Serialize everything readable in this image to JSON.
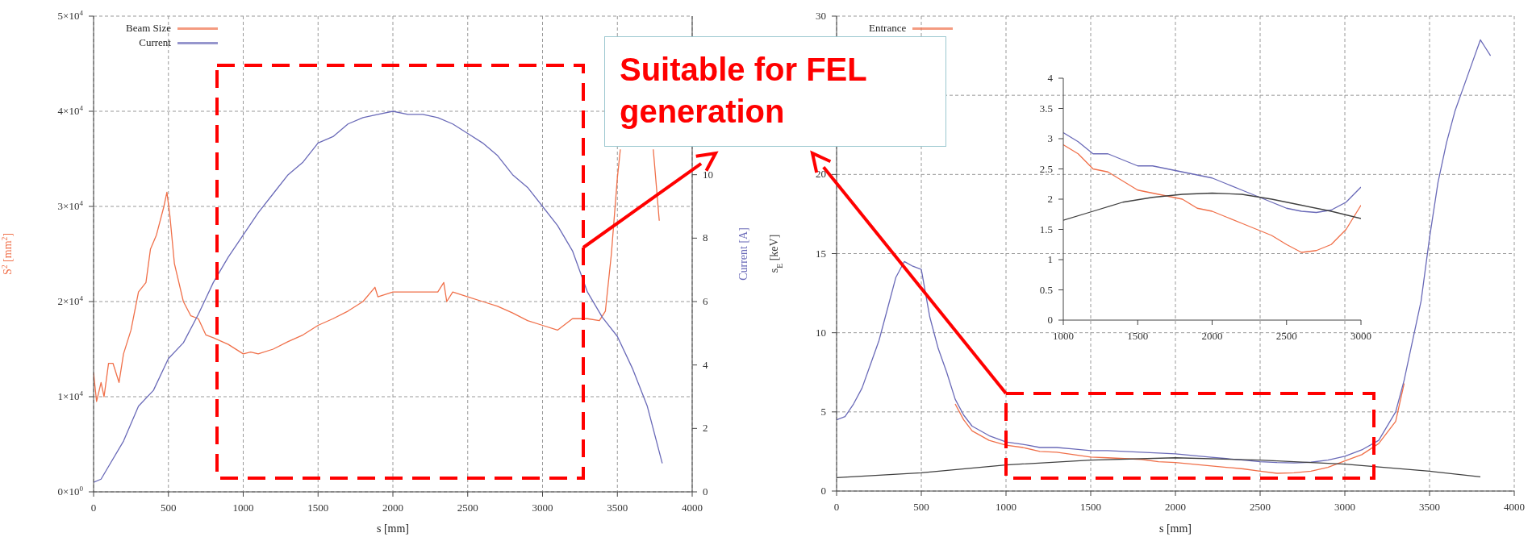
{
  "chart_data": [
    {
      "type": "line",
      "xlabel": "s [mm]",
      "ylabel": "S$^{2}$ [mm$^{2}$]",
      "y2label": "Current [A]",
      "xlim": [
        0,
        4000
      ],
      "xticks": [
        0,
        500,
        1000,
        1500,
        2000,
        2500,
        3000,
        3500,
        4000
      ],
      "ylim": [
        0,
        50000
      ],
      "yticks": [
        {
          "value": 0,
          "label": "0×10$^{0}$"
        },
        {
          "value": 10000,
          "label": "1×10$^{4}$"
        },
        {
          "value": 20000,
          "label": "2×10$^{4}$"
        },
        {
          "value": 30000,
          "label": "3×10$^{4}$"
        },
        {
          "value": 40000,
          "label": "4×10$^{4}$"
        },
        {
          "value": 50000,
          "label": "5×10$^{4}$"
        }
      ],
      "y2lim": [
        0,
        15
      ],
      "y2ticks": [
        0,
        2,
        4,
        6,
        8,
        10
      ],
      "grid": true,
      "legend": "top left",
      "annotations": [
        "Suitable for FEL generation"
      ],
      "series": [
        {
          "name": "Beam Size",
          "color": "#f0704a",
          "x": [
            0,
            20,
            50,
            70,
            100,
            130,
            170,
            200,
            250,
            300,
            350,
            380,
            420,
            470,
            490,
            510,
            540,
            600,
            650,
            700,
            750,
            800,
            900,
            1000,
            1050,
            1100,
            1200,
            1300,
            1400,
            1500,
            1600,
            1700,
            1800,
            1880,
            1900,
            2000,
            2100,
            2200,
            2300,
            2340,
            2360,
            2400,
            2500,
            2600,
            2700,
            2800,
            2900,
            3000,
            3100,
            3200,
            3300,
            3380,
            3420,
            3460,
            3500,
            3520,
            3600,
            3740,
            3780
          ],
          "values": [
            12500,
            9500,
            11500,
            10000,
            13500,
            13500,
            11500,
            14500,
            17000,
            21000,
            22000,
            25500,
            27000,
            30000,
            31500,
            29000,
            24000,
            20000,
            18500,
            18200,
            16500,
            16200,
            15500,
            14500,
            14700,
            14500,
            15000,
            15800,
            16500,
            17500,
            18200,
            19000,
            20000,
            21500,
            20500,
            21000,
            21000,
            21000,
            21000,
            22000,
            20000,
            21000,
            20500,
            20000,
            19500,
            18800,
            18000,
            17500,
            17000,
            18200,
            18200,
            18000,
            19000,
            25000,
            33000,
            36000,
            null,
            36000,
            28500
          ]
        },
        {
          "name": "Current",
          "color": "#6a6ab8",
          "axis": "y2",
          "x": [
            0,
            50,
            100,
            200,
            300,
            400,
            500,
            600,
            700,
            800,
            900,
            1000,
            1100,
            1200,
            1300,
            1400,
            1500,
            1600,
            1700,
            1800,
            1900,
            2000,
            2100,
            2200,
            2300,
            2400,
            2500,
            2600,
            2700,
            2800,
            2900,
            3000,
            3100,
            3200,
            3300,
            3400,
            3500,
            3600,
            3700,
            3800
          ],
          "values": [
            0.3,
            0.4,
            0.8,
            1.6,
            2.7,
            3.2,
            4.2,
            4.7,
            5.6,
            6.6,
            7.4,
            8.1,
            8.8,
            9.4,
            10.0,
            10.4,
            11.0,
            11.2,
            11.6,
            11.8,
            11.9,
            12.0,
            11.9,
            11.9,
            11.8,
            11.6,
            11.3,
            11.0,
            10.6,
            10.0,
            9.6,
            9.0,
            8.4,
            7.6,
            6.3,
            5.5,
            4.9,
            3.9,
            2.7,
            0.9
          ]
        }
      ]
    },
    {
      "type": "line",
      "xlabel": "s [mm]",
      "ylabel": "s$_{E}$ [keV]",
      "xlim": [
        0,
        4000
      ],
      "xticks": [
        0,
        500,
        1000,
        1500,
        2000,
        2500,
        3000,
        3500,
        4000
      ],
      "ylim": [
        0,
        30
      ],
      "yticks": [
        0,
        5,
        10,
        15,
        20,
        {
          "value": 25,
          "label": null
        },
        30
      ],
      "grid": true,
      "legend": "top left",
      "series": [
        {
          "name": "Entrance",
          "color": "#f0704a",
          "x": [
            700,
            750,
            800,
            900,
            1000,
            1100,
            1200,
            1300,
            1400,
            1500,
            1600,
            1700,
            1800,
            1900,
            2000,
            2100,
            2200,
            2300,
            2400,
            2500,
            2600,
            2700,
            2800,
            2900,
            3000,
            3100,
            3200,
            3300,
            3350
          ],
          "values": [
            5.5,
            4.5,
            3.8,
            3.2,
            2.9,
            2.75,
            2.5,
            2.45,
            2.3,
            2.15,
            2.1,
            2.05,
            2.0,
            1.85,
            1.8,
            1.7,
            1.6,
            1.5,
            1.4,
            1.25,
            1.12,
            1.15,
            1.25,
            1.5,
            1.9,
            2.3,
            3.0,
            4.4,
            6.8
          ]
        },
        {
          "color": "#6a6ab8",
          "x": [
            0,
            50,
            100,
            150,
            200,
            250,
            300,
            350,
            400,
            450,
            500,
            550,
            600,
            650,
            700,
            750,
            800,
            900,
            1000,
            1100,
            1200,
            1300,
            1400,
            1500,
            1600,
            1700,
            1800,
            1900,
            2000,
            2100,
            2200,
            2300,
            2400,
            2500,
            2600,
            2700,
            2800,
            2900,
            3000,
            3100,
            3200,
            3300,
            3350,
            3400,
            3450,
            3500,
            3550,
            3600,
            3650,
            3700,
            3750,
            3800,
            3830,
            3860
          ],
          "values": [
            4.5,
            4.7,
            5.5,
            6.5,
            8.0,
            9.5,
            11.5,
            13.5,
            14.5,
            14.2,
            14.0,
            11.0,
            9.0,
            7.5,
            5.8,
            4.8,
            4.1,
            3.5,
            3.1,
            2.95,
            2.75,
            2.75,
            2.65,
            2.55,
            2.55,
            2.5,
            2.45,
            2.4,
            2.35,
            2.25,
            2.15,
            2.05,
            1.95,
            1.85,
            1.8,
            1.78,
            1.82,
            1.95,
            2.2,
            2.6,
            3.2,
            5.0,
            7.0,
            9.5,
            12,
            16,
            19.5,
            22,
            24,
            25.5,
            27,
            28.5,
            28,
            27.5
          ]
        },
        {
          "color": "#404040",
          "x": [
            0,
            500,
            1000,
            1500,
            2000,
            2500,
            3000,
            3500,
            3800
          ],
          "values": [
            0.85,
            1.15,
            1.65,
            1.95,
            2.1,
            1.95,
            1.7,
            1.25,
            0.9
          ]
        }
      ]
    },
    {
      "type": "line",
      "xlim": [
        1000,
        3000
      ],
      "xticks": [
        1000,
        1500,
        2000,
        2500,
        3000
      ],
      "ylim": [
        0,
        4
      ],
      "yticks": [
        0,
        0.5,
        1,
        1.5,
        2,
        2.5,
        3,
        3.5,
        4
      ],
      "series": [
        {
          "color": "#f0704a",
          "x": [
            1000,
            1100,
            1200,
            1300,
            1400,
            1500,
            1600,
            1700,
            1800,
            1900,
            2000,
            2100,
            2200,
            2300,
            2400,
            2500,
            2600,
            2700,
            2800,
            2900,
            3000
          ],
          "values": [
            2.9,
            2.75,
            2.5,
            2.45,
            2.3,
            2.15,
            2.1,
            2.05,
            2.0,
            1.85,
            1.8,
            1.7,
            1.6,
            1.5,
            1.4,
            1.25,
            1.12,
            1.15,
            1.25,
            1.5,
            1.9
          ]
        },
        {
          "color": "#6a6ab8",
          "x": [
            1000,
            1100,
            1200,
            1300,
            1400,
            1500,
            1600,
            1700,
            1800,
            1900,
            2000,
            2100,
            2200,
            2300,
            2400,
            2500,
            2600,
            2700,
            2800,
            2900,
            3000
          ],
          "values": [
            3.1,
            2.95,
            2.75,
            2.75,
            2.65,
            2.55,
            2.55,
            2.5,
            2.45,
            2.4,
            2.35,
            2.25,
            2.15,
            2.05,
            1.95,
            1.85,
            1.8,
            1.78,
            1.82,
            1.95,
            2.2
          ]
        },
        {
          "color": "#404040",
          "x": [
            1000,
            1200,
            1400,
            1600,
            1800,
            2000,
            2200,
            2400,
            2600,
            2800,
            3000
          ],
          "values": [
            1.65,
            1.8,
            1.95,
            2.03,
            2.08,
            2.1,
            2.08,
            2.0,
            1.9,
            1.8,
            1.68
          ]
        }
      ]
    }
  ]
}
